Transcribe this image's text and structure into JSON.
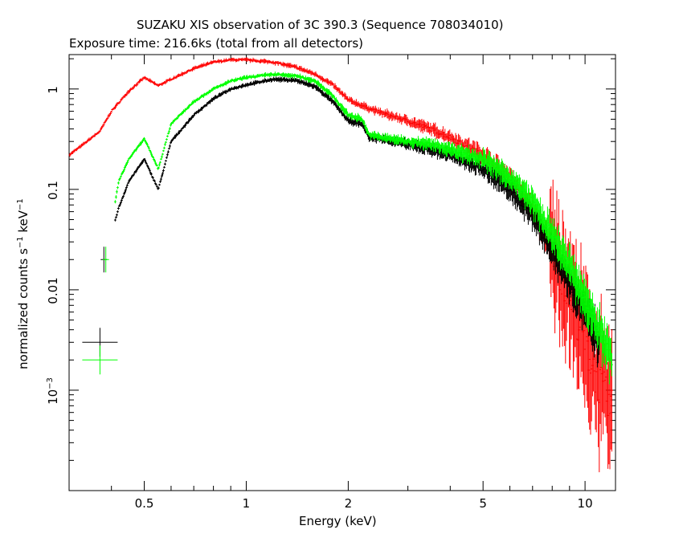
{
  "chart_data": {
    "type": "scatter",
    "title": "SUZAKU XIS observation of 3C 390.3 (Sequence 708034010)",
    "subtitle": "Exposure time: 216.6ks (total from all detectors)",
    "xlabel": "Energy (keV)",
    "ylabel_main": "normalized counts s",
    "ylabel_sup1": "−1",
    "ylabel_mid": " keV",
    "ylabel_sup2": "−1",
    "x_scale": "log",
    "y_scale": "log",
    "xlim": [
      0.3,
      12.3
    ],
    "ylim": [
      0.0001,
      2.2
    ],
    "x_ticks": [
      {
        "value": 0.5,
        "label": "0.5"
      },
      {
        "value": 1,
        "label": "1"
      },
      {
        "value": 2,
        "label": "2"
      },
      {
        "value": 5,
        "label": "5"
      },
      {
        "value": 10,
        "label": "10"
      }
    ],
    "y_ticks": [
      {
        "value": 1,
        "label": "1"
      },
      {
        "value": 0.1,
        "label": "0.1"
      },
      {
        "value": 0.01,
        "label": "0.01"
      },
      {
        "value": 0.001,
        "label": "10",
        "sup": "−3"
      }
    ],
    "grid": false,
    "legend": "none",
    "series": [
      {
        "color": "#ff0000",
        "x": [
          0.3,
          0.33,
          0.37,
          0.4,
          0.45,
          0.5,
          0.55,
          0.6,
          0.7,
          0.8,
          0.9,
          1.0,
          1.2,
          1.4,
          1.6,
          1.8,
          2.0,
          2.2,
          2.5,
          3,
          3.5,
          4,
          5,
          6,
          7,
          8,
          9,
          10,
          11,
          12
        ],
        "y": [
          0.22,
          0.28,
          0.38,
          0.6,
          0.95,
          1.3,
          1.08,
          1.25,
          1.6,
          1.85,
          1.95,
          1.95,
          1.85,
          1.65,
          1.4,
          1.1,
          0.78,
          0.68,
          0.58,
          0.48,
          0.4,
          0.33,
          0.22,
          0.13,
          0.065,
          0.025,
          0.009,
          0.003,
          0.0012,
          0.0006
        ]
      },
      {
        "color": "#000000",
        "x": [
          0.37,
          0.38,
          0.42,
          0.45,
          0.5,
          0.55,
          0.6,
          0.7,
          0.8,
          0.9,
          1.0,
          1.2,
          1.4,
          1.6,
          1.8,
          2.0,
          2.2,
          2.3,
          2.5,
          3,
          3.5,
          4,
          5,
          6,
          7,
          8,
          9,
          10,
          11
        ],
        "y": [
          0.003,
          0.02,
          0.065,
          0.12,
          0.2,
          0.1,
          0.3,
          0.55,
          0.8,
          1.0,
          1.1,
          1.25,
          1.22,
          1.05,
          0.75,
          0.48,
          0.45,
          0.33,
          0.32,
          0.28,
          0.25,
          0.22,
          0.16,
          0.1,
          0.055,
          0.025,
          0.012,
          0.006,
          0.003
        ]
      },
      {
        "color": "#00ff00",
        "x": [
          0.37,
          0.385,
          0.42,
          0.45,
          0.5,
          0.55,
          0.6,
          0.7,
          0.8,
          0.9,
          1.0,
          1.2,
          1.4,
          1.6,
          1.8,
          2.0,
          2.2,
          2.3,
          2.5,
          3,
          3.5,
          4,
          5,
          6,
          7,
          8,
          9,
          10,
          11,
          12
        ],
        "y": [
          0.002,
          0.02,
          0.12,
          0.2,
          0.32,
          0.16,
          0.45,
          0.75,
          1.0,
          1.2,
          1.3,
          1.4,
          1.35,
          1.2,
          0.85,
          0.55,
          0.5,
          0.35,
          0.33,
          0.3,
          0.28,
          0.25,
          0.2,
          0.13,
          0.075,
          0.035,
          0.017,
          0.008,
          0.004,
          0.002
        ]
      }
    ]
  }
}
